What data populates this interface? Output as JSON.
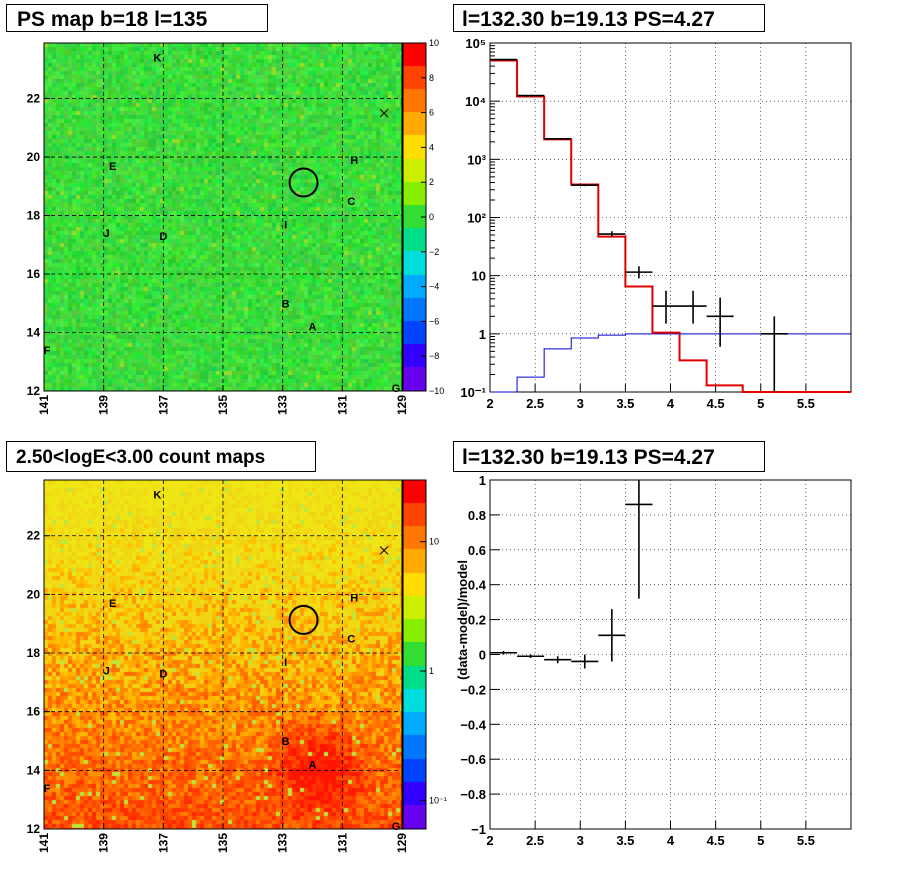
{
  "titles": {
    "tl": "PS map b=18 l=135",
    "tr": "l=132.30 b=19.13 PS=4.27",
    "bl": "2.50<logE<3.00 count maps",
    "br": "l=132.30 b=19.13 PS=4.27"
  },
  "colors": {
    "model_line": "#e00000",
    "background_line": "#0000cc",
    "data_marker": "#000000",
    "map_bg_top": "#33dd33",
    "map_bg_bottom": "#ffcc00"
  },
  "chart_data": [
    {
      "type": "heatmap",
      "title": "PS map b=18 l=135",
      "x_ticks": [
        "141",
        "139",
        "137",
        "135",
        "133",
        "131",
        "129"
      ],
      "xlim": [
        141,
        129
      ],
      "y_ticks": [
        "12",
        "14",
        "16",
        "18",
        "20",
        "22"
      ],
      "ylim": [
        12,
        23.9
      ],
      "colorbar": {
        "ticks": [
          "10",
          "8",
          "6",
          "4",
          "2",
          "0",
          "−2",
          "−4",
          "−6",
          "−8",
          "−10"
        ],
        "range": [
          -10,
          10
        ],
        "scale": "linear"
      },
      "grid": true,
      "sources": [
        {
          "label": "K",
          "l": 137.2,
          "b": 23.4
        },
        {
          "label": "E",
          "l": 138.7,
          "b": 19.7
        },
        {
          "label": "H",
          "l": 130.6,
          "b": 19.9
        },
        {
          "label": "C",
          "l": 130.7,
          "b": 18.5
        },
        {
          "label": "J",
          "l": 138.9,
          "b": 17.4
        },
        {
          "label": "D",
          "l": 137.0,
          "b": 17.3
        },
        {
          "label": "I",
          "l": 132.9,
          "b": 17.7
        },
        {
          "label": "B",
          "l": 132.9,
          "b": 15.0
        },
        {
          "label": "A",
          "l": 132.0,
          "b": 14.2
        },
        {
          "label": "F",
          "l": 140.9,
          "b": 13.4
        },
        {
          "label": "G",
          "l": 129.2,
          "b": 12.1
        }
      ],
      "circle": {
        "l": 132.3,
        "b": 19.13
      },
      "cross": {
        "l": 129.6,
        "b": 21.5
      }
    },
    {
      "type": "line",
      "title": "l=132.30 b=19.13 PS=4.27",
      "xlim": [
        2,
        6
      ],
      "ylim": [
        0.1,
        100000
      ],
      "yscale": "log",
      "x_ticks": [
        "2",
        "2.5",
        "3",
        "3.5",
        "4",
        "4.5",
        "5",
        "5.5"
      ],
      "y_ticks": [
        "10⁻¹",
        "1",
        "10",
        "10²",
        "10³",
        "10⁴",
        "10⁵"
      ],
      "grid": true,
      "series": [
        {
          "style": "step",
          "color": "#e00000",
          "edges": [
            2.0,
            2.3,
            2.6,
            2.9,
            3.2,
            3.5,
            3.8,
            4.1,
            4.4,
            4.8,
            5.2,
            5.6,
            6.0
          ],
          "values": [
            50000,
            12000,
            2200,
            370,
            47,
            6.5,
            1.05,
            0.35,
            0.13,
            0.1,
            0.1,
            0.1
          ]
        },
        {
          "style": "step",
          "color": "#0000cc",
          "edges": [
            2.0,
            2.3,
            2.6,
            2.9,
            3.2,
            3.5,
            3.8,
            4.1,
            4.4,
            4.8,
            5.2,
            5.6,
            6.0
          ],
          "values": [
            0.1,
            0.18,
            0.55,
            0.85,
            0.95,
            1.0,
            1.0,
            1.0,
            1.0,
            1.0,
            1.0,
            1.0
          ]
        },
        {
          "style": "errorbars",
          "color": "#000000",
          "points": [
            {
              "x": 2.15,
              "y": 52000,
              "xerr": 0.15,
              "ylo": 51500,
              "yhi": 52500
            },
            {
              "x": 2.45,
              "y": 12500,
              "xerr": 0.15,
              "ylo": 12300,
              "yhi": 12700
            },
            {
              "x": 2.75,
              "y": 2250,
              "xerr": 0.15,
              "ylo": 2200,
              "yhi": 2300
            },
            {
              "x": 3.05,
              "y": 360,
              "xerr": 0.15,
              "ylo": 345,
              "yhi": 375
            },
            {
              "x": 3.35,
              "y": 52,
              "xerr": 0.15,
              "ylo": 47,
              "yhi": 58
            },
            {
              "x": 3.65,
              "y": 11.5,
              "xerr": 0.15,
              "ylo": 9,
              "yhi": 14.5
            },
            {
              "x": 3.95,
              "y": 3.0,
              "xerr": 0.15,
              "ylo": 1.5,
              "yhi": 5.5
            },
            {
              "x": 4.25,
              "y": 3.0,
              "xerr": 0.15,
              "ylo": 1.5,
              "yhi": 5.5
            },
            {
              "x": 4.55,
              "y": 2.0,
              "xerr": 0.15,
              "ylo": 0.6,
              "yhi": 4.2
            },
            {
              "x": 5.15,
              "y": 1.0,
              "xerr": 0.15,
              "ylo": 0.1,
              "yhi": 2.0
            }
          ]
        }
      ]
    },
    {
      "type": "heatmap",
      "title": "2.50<logE<3.00 count maps",
      "x_ticks": [
        "141",
        "139",
        "137",
        "135",
        "133",
        "131",
        "129"
      ],
      "xlim": [
        141,
        129
      ],
      "y_ticks": [
        "12",
        "14",
        "16",
        "18",
        "20",
        "22"
      ],
      "ylim": [
        12,
        23.9
      ],
      "colorbar": {
        "ticks": [
          "10",
          "1",
          "10⁻¹"
        ],
        "range": [
          0.06,
          30
        ],
        "scale": "log"
      },
      "grid": true,
      "sources": [
        {
          "label": "K",
          "l": 137.2,
          "b": 23.4
        },
        {
          "label": "E",
          "l": 138.7,
          "b": 19.7
        },
        {
          "label": "H",
          "l": 130.6,
          "b": 19.9
        },
        {
          "label": "C",
          "l": 130.7,
          "b": 18.5
        },
        {
          "label": "J",
          "l": 138.9,
          "b": 17.4
        },
        {
          "label": "D",
          "l": 137.0,
          "b": 17.3
        },
        {
          "label": "I",
          "l": 132.9,
          "b": 17.7
        },
        {
          "label": "B",
          "l": 132.9,
          "b": 15.0
        },
        {
          "label": "A",
          "l": 132.0,
          "b": 14.2
        },
        {
          "label": "F",
          "l": 140.9,
          "b": 13.4
        },
        {
          "label": "G",
          "l": 129.2,
          "b": 12.1
        }
      ],
      "circle": {
        "l": 132.3,
        "b": 19.13
      },
      "cross": {
        "l": 129.6,
        "b": 21.5
      }
    },
    {
      "type": "scatter",
      "title": "l=132.30 b=19.13 PS=4.27",
      "ylabel": "(data-model)/model",
      "xlim": [
        2,
        6
      ],
      "ylim": [
        -1,
        1
      ],
      "x_ticks": [
        "2",
        "2.5",
        "3",
        "3.5",
        "4",
        "4.5",
        "5",
        "5.5"
      ],
      "y_ticks": [
        "−1",
        "−0.8",
        "−0.6",
        "−0.4",
        "−0.2",
        "0",
        "0.2",
        "0.4",
        "0.6",
        "0.8",
        "1"
      ],
      "grid": true,
      "series": [
        {
          "style": "errorbars",
          "color": "#000000",
          "points": [
            {
              "x": 2.15,
              "y": 0.01,
              "xerr": 0.15,
              "ylo": 0.0,
              "yhi": 0.02
            },
            {
              "x": 2.45,
              "y": -0.01,
              "xerr": 0.15,
              "ylo": -0.02,
              "yhi": 0.0
            },
            {
              "x": 2.75,
              "y": -0.03,
              "xerr": 0.15,
              "ylo": -0.05,
              "yhi": -0.01
            },
            {
              "x": 3.05,
              "y": -0.04,
              "xerr": 0.15,
              "ylo": -0.08,
              "yhi": 0.0
            },
            {
              "x": 3.35,
              "y": 0.11,
              "xerr": 0.15,
              "ylo": -0.04,
              "yhi": 0.26
            },
            {
              "x": 3.65,
              "y": 0.86,
              "xerr": 0.15,
              "ylo": 0.32,
              "yhi": 1.0
            }
          ]
        }
      ]
    }
  ]
}
